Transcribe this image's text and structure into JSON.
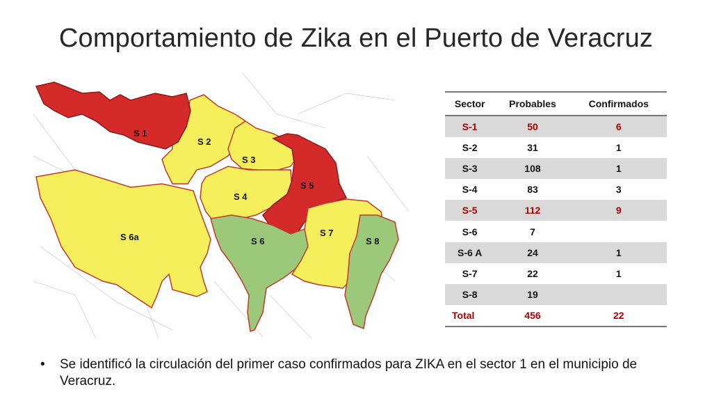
{
  "title": "Comportamiento de Zika en el Puerto de Veracruz",
  "map": {
    "sector_labels": [
      "S 1",
      "S 2",
      "S 3",
      "S 4",
      "S 5",
      "S 6a",
      "S 6",
      "S 7",
      "S 8"
    ],
    "colors": {
      "red": "#d42a2a",
      "yellow": "#f4ef5a",
      "green": "#9cc87a",
      "border": "#c0392b"
    }
  },
  "table": {
    "headers": [
      "Sector",
      "Probables",
      "Confirmados"
    ],
    "rows": [
      {
        "sector": "S-1",
        "probables": "50",
        "confirmados": "6"
      },
      {
        "sector": "S-2",
        "probables": "31",
        "confirmados": "1"
      },
      {
        "sector": "S-3",
        "probables": "108",
        "confirmados": "1"
      },
      {
        "sector": "S-4",
        "probables": "83",
        "confirmados": "3"
      },
      {
        "sector": "S-5",
        "probables": "112",
        "confirmados": "9"
      },
      {
        "sector": "S-6",
        "probables": "7",
        "confirmados": ""
      },
      {
        "sector": "S-6 A",
        "probables": "24",
        "confirmados": "1"
      },
      {
        "sector": "S-7",
        "probables": "22",
        "confirmados": "1"
      },
      {
        "sector": "S-8",
        "probables": "19",
        "confirmados": ""
      }
    ],
    "total": {
      "label": "Total",
      "probables": "456",
      "confirmados": "22"
    }
  },
  "note": {
    "bullet": "•",
    "text": "Se identificó la circulación del  primer caso confirmados para ZIKA en el sector 1 en el municipio de Veracruz."
  }
}
